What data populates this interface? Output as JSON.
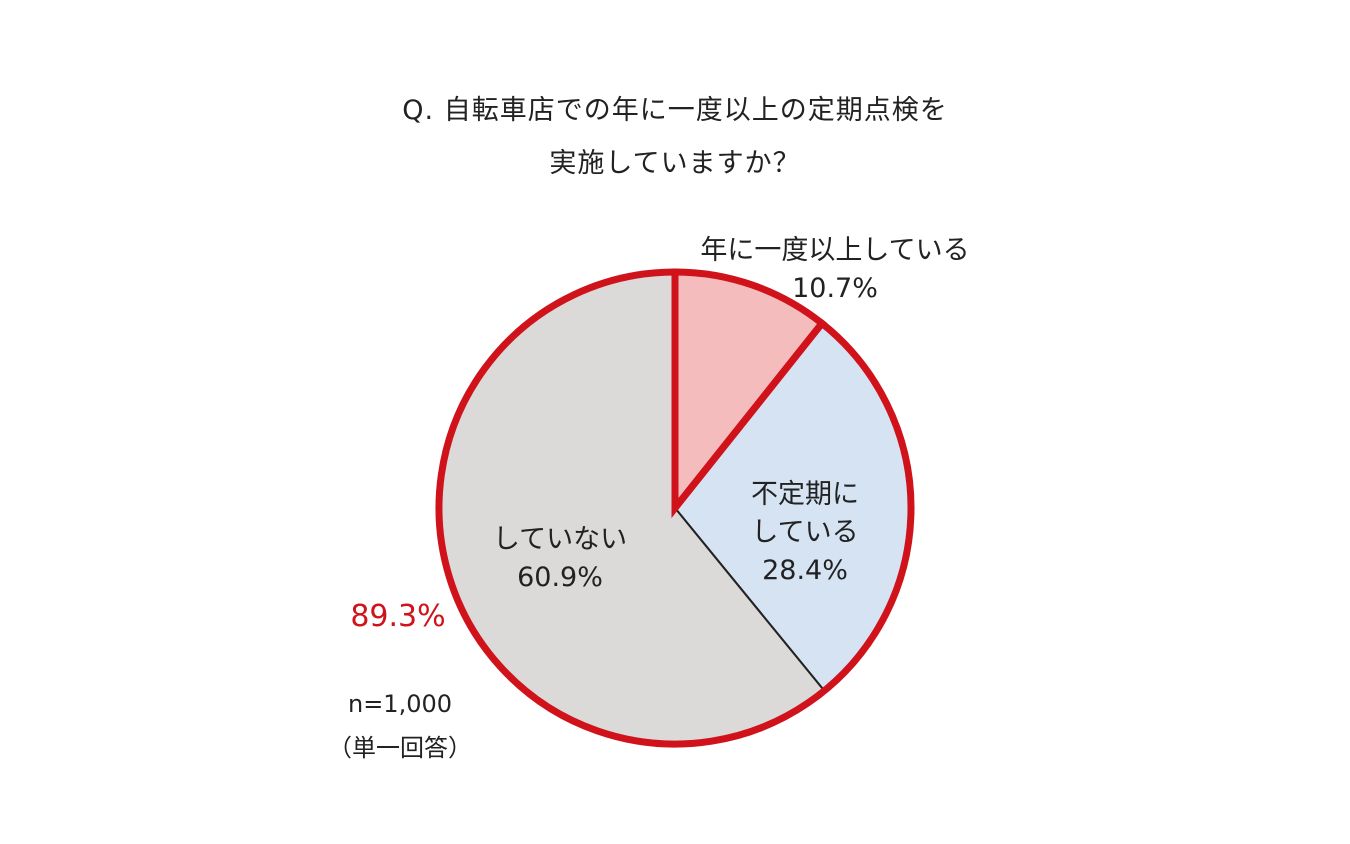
{
  "title_line1": "Q. 自転車店での年に一度以上の定期点検を",
  "title_line2": "実施していますか？",
  "chart_data": {
    "type": "pie",
    "slices": [
      {
        "label_lines": [
          "年に一度以上している"
        ],
        "value": 10.7,
        "value_label": "10.7%",
        "color": "#f5bcbd"
      },
      {
        "label_lines": [
          "不定期に",
          "している"
        ],
        "value": 28.4,
        "value_label": "28.4%",
        "color": "#d6e3f3"
      },
      {
        "label_lines": [
          "していない"
        ],
        "value": 60.9,
        "value_label": "60.9%",
        "color": "#dcdad9"
      }
    ],
    "highlight": {
      "value_label": "89.3%",
      "color": "#d0121b"
    },
    "sample": "n=1,000",
    "note": "（単一回答）"
  }
}
